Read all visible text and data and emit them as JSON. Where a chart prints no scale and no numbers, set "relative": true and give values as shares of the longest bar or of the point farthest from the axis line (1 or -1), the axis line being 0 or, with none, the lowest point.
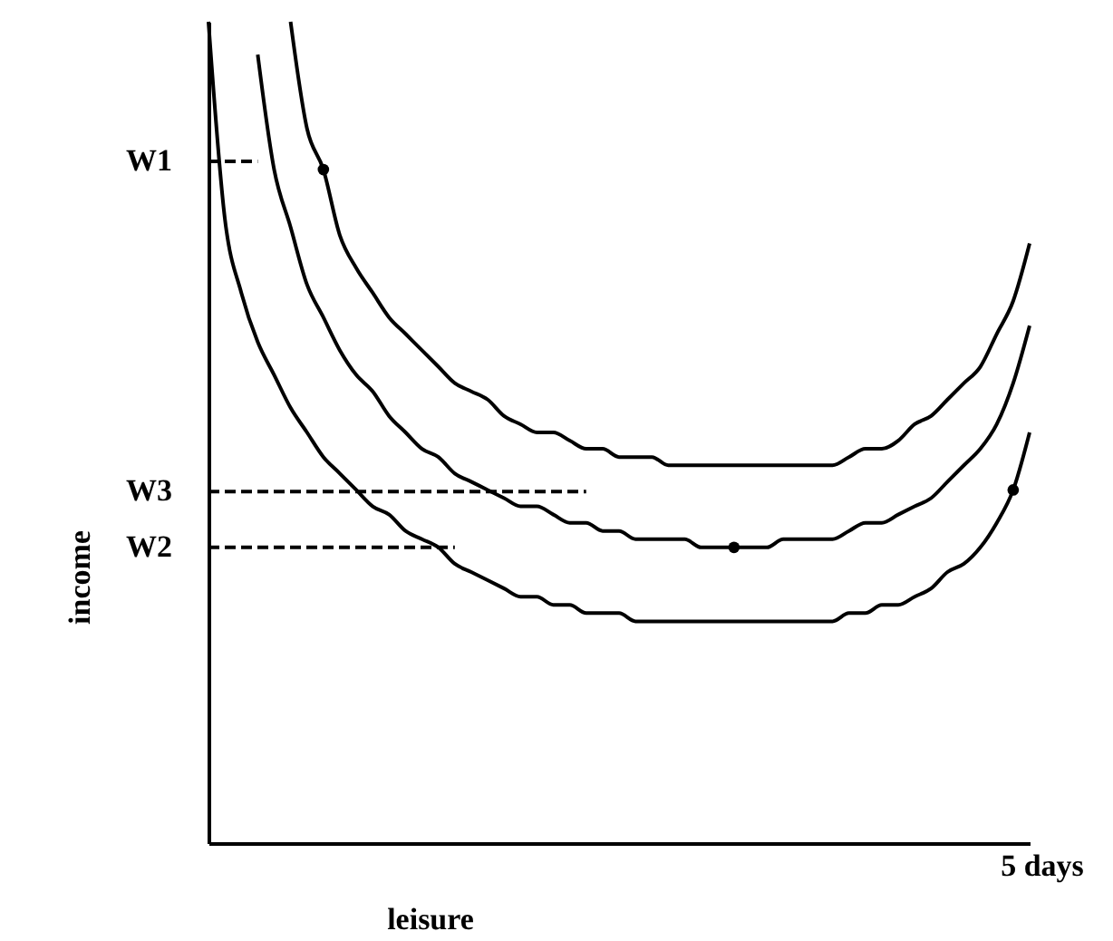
{
  "chart_data": {
    "type": "line",
    "relative": true,
    "xlabel": "leisure",
    "ylabel": "income",
    "categories": [
      null,
      null,
      null,
      null,
      null,
      null,
      null,
      null,
      null,
      null,
      null,
      null,
      null,
      null,
      null,
      null,
      null,
      null,
      null,
      null,
      null,
      null,
      null,
      null,
      null,
      null,
      null,
      null,
      null,
      null,
      null,
      null,
      null,
      null,
      null,
      null,
      null,
      null,
      null,
      null,
      null,
      null,
      null,
      null,
      null,
      null,
      null,
      null,
      null,
      null,
      null
    ],
    "series": [
      {
        "color": "#000000",
        "line_style": "solid",
        "values": [
          null,
          null,
          null,
          null,
          null,
          1.0,
          0.87,
          0.82,
          0.74,
          0.7,
          0.67,
          0.64,
          0.62,
          0.6,
          0.58,
          0.56,
          0.55,
          0.54,
          0.52,
          0.51,
          0.5,
          0.5,
          0.49,
          0.48,
          0.48,
          0.47,
          0.47,
          0.47,
          0.46,
          0.46,
          0.46,
          0.46,
          0.46,
          0.46,
          0.46,
          0.46,
          0.46,
          0.46,
          0.46,
          0.47,
          0.48,
          0.48,
          0.49,
          0.51,
          0.52,
          0.54,
          0.56,
          0.58,
          0.62,
          0.66,
          0.73
        ]
      },
      {
        "color": "#000000",
        "line_style": "solid",
        "values": [
          null,
          null,
          null,
          0.96,
          0.82,
          0.75,
          0.68,
          0.64,
          0.6,
          0.57,
          0.55,
          0.52,
          0.5,
          0.48,
          0.47,
          0.45,
          0.44,
          0.43,
          0.42,
          0.41,
          0.41,
          0.4,
          0.39,
          0.39,
          0.38,
          0.38,
          0.37,
          0.37,
          0.37,
          0.37,
          0.36,
          0.36,
          0.36,
          0.36,
          0.36,
          0.37,
          0.37,
          0.37,
          0.37,
          0.38,
          0.39,
          0.39,
          0.4,
          0.41,
          0.42,
          0.44,
          0.46,
          0.48,
          0.51,
          0.56,
          0.63
        ]
      },
      {
        "color": "#000000",
        "line_style": "solid",
        "values": [
          1.0,
          0.76,
          0.67,
          0.61,
          0.57,
          0.53,
          0.5,
          0.47,
          0.45,
          0.43,
          0.41,
          0.4,
          0.38,
          0.37,
          0.36,
          0.34,
          0.33,
          0.32,
          0.31,
          0.3,
          0.3,
          0.29,
          0.29,
          0.28,
          0.28,
          0.28,
          0.27,
          0.27,
          0.27,
          0.27,
          0.27,
          0.27,
          0.27,
          0.27,
          0.27,
          0.27,
          0.27,
          0.27,
          0.27,
          0.28,
          0.28,
          0.29,
          0.29,
          0.3,
          0.31,
          0.33,
          0.34,
          0.36,
          0.39,
          0.43,
          0.5
        ]
      },
      {
        "name": "W1",
        "color": "#000000",
        "line_style": "dashed",
        "values": [
          0.83,
          0.83,
          0.83,
          0.83,
          null,
          null,
          null,
          null,
          null,
          null,
          null,
          null,
          null,
          null,
          null,
          null,
          null,
          null,
          null,
          null,
          null,
          null,
          null,
          null,
          null,
          null,
          null,
          null,
          null,
          null,
          null,
          null,
          null,
          null,
          null,
          null,
          null,
          null,
          null,
          null,
          null,
          null,
          null,
          null,
          null,
          null,
          null,
          null,
          null,
          null,
          null
        ]
      },
      {
        "name": "W3",
        "color": "#000000",
        "line_style": "dashed",
        "values": [
          0.428,
          0.428,
          0.428,
          0.428,
          0.428,
          0.428,
          0.428,
          0.428,
          0.428,
          0.428,
          0.428,
          0.428,
          0.428,
          0.428,
          0.428,
          0.428,
          0.428,
          0.428,
          0.428,
          0.428,
          0.428,
          0.428,
          0.428,
          0.428,
          null,
          null,
          null,
          null,
          null,
          null,
          null,
          null,
          null,
          null,
          null,
          null,
          null,
          null,
          null,
          null,
          null,
          null,
          null,
          null,
          null,
          null,
          null,
          null,
          null,
          null,
          null
        ]
      },
      {
        "name": "W2",
        "color": "#000000",
        "line_style": "dashed",
        "values": [
          0.36,
          0.36,
          0.36,
          0.36,
          0.36,
          0.36,
          0.36,
          0.36,
          0.36,
          0.36,
          0.36,
          0.36,
          0.36,
          0.36,
          0.36,
          0.36,
          null,
          null,
          null,
          null,
          null,
          null,
          null,
          null,
          null,
          null,
          null,
          null,
          null,
          null,
          null,
          null,
          null,
          null,
          null,
          null,
          null,
          null,
          null,
          null,
          null,
          null,
          null,
          null,
          null,
          null,
          null,
          null,
          null,
          null,
          null
        ]
      },
      {
        "color": "#000000",
        "marker": "circle",
        "line_style": "none",
        "values": [
          null,
          null,
          null,
          null,
          null,
          null,
          null,
          0.82,
          null,
          null,
          null,
          null,
          null,
          null,
          null,
          null,
          null,
          null,
          null,
          null,
          null,
          null,
          null,
          null,
          null,
          null,
          null,
          null,
          null,
          null,
          null,
          null,
          0.36,
          null,
          null,
          null,
          null,
          null,
          null,
          null,
          null,
          null,
          null,
          null,
          null,
          null,
          null,
          null,
          null,
          0.43,
          null
        ]
      }
    ],
    "annotations": [
      "5 days"
    ]
  }
}
